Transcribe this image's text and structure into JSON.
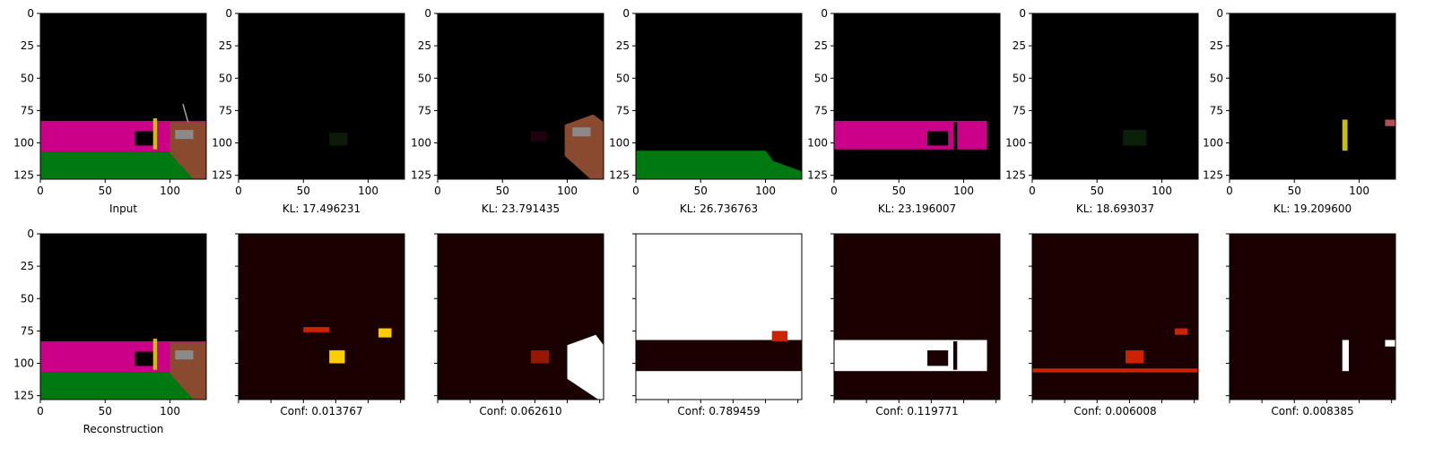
{
  "chart_data": {
    "type": "image-grid",
    "rows": 2,
    "cols": 7,
    "axis": {
      "xlim": [
        0,
        128
      ],
      "ylim": [
        128,
        0
      ],
      "x_ticks": [
        0,
        50,
        100
      ],
      "y_ticks": [
        0,
        25,
        50,
        75,
        100,
        125
      ]
    },
    "top_row": [
      {
        "kind": "rgb",
        "image": "input",
        "caption": "Input",
        "show_yticks": true
      },
      {
        "kind": "rgb",
        "image": "slot1",
        "caption": "KL: 17.496231",
        "show_yticks": true
      },
      {
        "kind": "rgb",
        "image": "slot2",
        "caption": "KL: 23.791435",
        "show_yticks": true
      },
      {
        "kind": "rgb",
        "image": "slot3",
        "caption": "KL: 26.736763",
        "show_yticks": true
      },
      {
        "kind": "rgb",
        "image": "slot4",
        "caption": "KL: 23.196007",
        "show_yticks": true
      },
      {
        "kind": "rgb",
        "image": "slot5",
        "caption": "KL: 18.693037",
        "show_yticks": true
      },
      {
        "kind": "rgb",
        "image": "slot6",
        "caption": "KL: 19.209600",
        "show_yticks": true
      }
    ],
    "bottom_row": [
      {
        "kind": "rgb",
        "image": "reconstruction",
        "caption": "Reconstruction",
        "show_yticks": true,
        "show_xticklabels": true
      },
      {
        "kind": "heatmap",
        "image": "mask1",
        "caption": "Conf: 0.013767"
      },
      {
        "kind": "heatmap",
        "image": "mask2",
        "caption": "Conf: 0.062610"
      },
      {
        "kind": "heatmap",
        "image": "mask3",
        "caption": "Conf: 0.789459"
      },
      {
        "kind": "heatmap",
        "image": "mask4",
        "caption": "Conf: 0.119771"
      },
      {
        "kind": "heatmap",
        "image": "mask5",
        "caption": "Conf: 0.006008"
      },
      {
        "kind": "heatmap",
        "image": "mask6",
        "caption": "Conf: 0.008385"
      }
    ],
    "colors": {
      "background": "#000000",
      "magenta": "#cc0088",
      "green": "#007a10",
      "brown": "#8a4a30",
      "yellow": "#c8c000",
      "gray": "#8a8a8a",
      "heat_dark": "#1a0000",
      "heat_mid": "#cc2200",
      "heat_bright": "#ffcc00",
      "heat_white": "#ffffff"
    }
  }
}
